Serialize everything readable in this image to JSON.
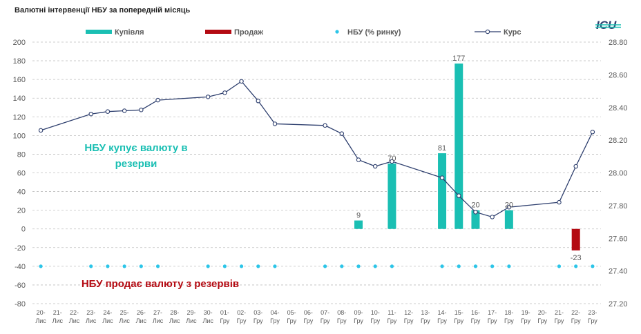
{
  "title": "Валютні інтервенції НБУ  за попередній місяць",
  "logo_text": "ICU",
  "colors": {
    "buy": "#1ABFB3",
    "sell": "#B40A12",
    "nbu": "#2CC5E8",
    "rate": "#2E3F6E",
    "grid": "#BFBFBF",
    "ann_buy": "#1ABFB3",
    "ann_sell": "#B40A12"
  },
  "annotations": {
    "buy_line1": "НБУ купує валюту в",
    "buy_line2": "резерви",
    "sell": "НБУ продає валюту з резервів"
  },
  "chart_data": {
    "type": "bar",
    "categories": [
      [
        "20-",
        "Лис"
      ],
      [
        "21-",
        "Лис"
      ],
      [
        "22-",
        "Лис"
      ],
      [
        "23-",
        "Лис"
      ],
      [
        "24-",
        "Лис"
      ],
      [
        "25-",
        "Лис"
      ],
      [
        "26-",
        "Лис"
      ],
      [
        "27-",
        "Лис"
      ],
      [
        "28-",
        "Лис"
      ],
      [
        "29-",
        "Лис"
      ],
      [
        "30-",
        "Лис"
      ],
      [
        "01-",
        "Гру"
      ],
      [
        "02-",
        "Гру"
      ],
      [
        "03-",
        "Гру"
      ],
      [
        "04-",
        "Гру"
      ],
      [
        "05-",
        "Гру"
      ],
      [
        "06-",
        "Гру"
      ],
      [
        "07-",
        "Гру"
      ],
      [
        "08-",
        "Гру"
      ],
      [
        "09-",
        "Гру"
      ],
      [
        "10-",
        "Гру"
      ],
      [
        "11-",
        "Гру"
      ],
      [
        "12-",
        "Гру"
      ],
      [
        "13-",
        "Гру"
      ],
      [
        "14-",
        "Гру"
      ],
      [
        "15-",
        "Гру"
      ],
      [
        "16-",
        "Гру"
      ],
      [
        "17-",
        "Гру"
      ],
      [
        "18-",
        "Гру"
      ],
      [
        "19-",
        "Гру"
      ],
      [
        "20-",
        "Гру"
      ],
      [
        "21-",
        "Гру"
      ],
      [
        "22-",
        "Гру"
      ],
      [
        "23-",
        "Гру"
      ]
    ],
    "left_axis": {
      "ylim": [
        -80,
        200
      ],
      "ticks": [
        200,
        180,
        160,
        140,
        120,
        100,
        80,
        60,
        40,
        20,
        0,
        -20,
        -40,
        -60,
        -80
      ]
    },
    "right_axis": {
      "ylim": [
        27.2,
        28.8
      ],
      "ticks": [
        "28.80",
        "28.60",
        "28.40",
        "28.20",
        "28.00",
        "27.80",
        "27.60",
        "27.40",
        "27.20"
      ]
    },
    "grid": true,
    "legend_position": "top",
    "series": [
      {
        "name": "Купівля",
        "kind": "bar",
        "axis": "left",
        "values": [
          null,
          null,
          null,
          null,
          null,
          null,
          null,
          null,
          null,
          null,
          null,
          null,
          null,
          null,
          null,
          null,
          null,
          null,
          null,
          9,
          null,
          70,
          null,
          null,
          81,
          177,
          20,
          null,
          20,
          null,
          null,
          null,
          null,
          null
        ],
        "labels": [
          null,
          null,
          null,
          null,
          null,
          null,
          null,
          null,
          null,
          null,
          null,
          null,
          null,
          null,
          null,
          null,
          null,
          null,
          null,
          "9",
          null,
          "70",
          null,
          null,
          "81",
          "177",
          "20",
          null,
          "20",
          null,
          null,
          null,
          null,
          null
        ]
      },
      {
        "name": "Продаж",
        "kind": "bar",
        "axis": "left",
        "values": [
          null,
          null,
          null,
          null,
          null,
          null,
          null,
          null,
          null,
          null,
          null,
          null,
          null,
          null,
          null,
          null,
          null,
          null,
          null,
          null,
          null,
          null,
          null,
          null,
          null,
          null,
          null,
          null,
          null,
          null,
          null,
          null,
          -23,
          null
        ],
        "labels": [
          null,
          null,
          null,
          null,
          null,
          null,
          null,
          null,
          null,
          null,
          null,
          null,
          null,
          null,
          null,
          null,
          null,
          null,
          null,
          null,
          null,
          null,
          null,
          null,
          null,
          null,
          null,
          null,
          null,
          null,
          null,
          null,
          "-23",
          null
        ]
      },
      {
        "name": "НБУ (% ринку)",
        "kind": "points",
        "axis": "left",
        "values": [
          -40,
          null,
          null,
          -40,
          -40,
          -40,
          -40,
          -40,
          null,
          null,
          -40,
          -40,
          -40,
          -40,
          -40,
          null,
          null,
          -40,
          -40,
          -40,
          -40,
          -40,
          null,
          null,
          -40,
          -40,
          -40,
          -40,
          -40,
          null,
          null,
          -40,
          -40,
          -40
        ]
      },
      {
        "name": "Курс",
        "kind": "line",
        "axis": "right",
        "values": [
          28.26,
          null,
          null,
          28.36,
          28.375,
          28.38,
          28.385,
          28.445,
          null,
          null,
          28.465,
          28.49,
          28.56,
          28.44,
          28.3,
          null,
          null,
          28.29,
          28.24,
          28.08,
          28.04,
          28.07,
          null,
          null,
          27.97,
          27.86,
          27.76,
          27.73,
          27.79,
          null,
          null,
          27.82,
          28.04,
          28.25
        ]
      }
    ]
  }
}
